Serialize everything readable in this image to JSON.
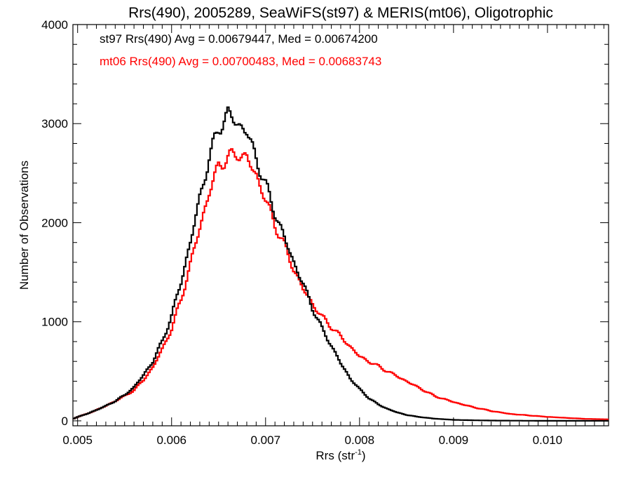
{
  "chart_data": {
    "type": "line",
    "title": "Rrs(490), 2005289, SeaWiFS(st97) & MERIS(mt06), Oligotrophic",
    "xlabel": "Rrs (str",
    "xlabel_sup": "-1",
    "xlabel_close": ")",
    "ylabel": "Number of Observations",
    "xlim": [
      0.00495,
      0.01065
    ],
    "ylim": [
      -50,
      4000
    ],
    "xticks": [
      0.005,
      0.006,
      0.007,
      0.008,
      0.009,
      0.01
    ],
    "xtick_labels": [
      "0.005",
      "0.006",
      "0.007",
      "0.008",
      "0.009",
      "0.010"
    ],
    "yticks": [
      0,
      1000,
      2000,
      3000,
      4000
    ],
    "ytick_labels": [
      "0",
      "1000",
      "2000",
      "3000",
      "4000"
    ],
    "grid": false,
    "legend": "top-left",
    "annotations": [
      {
        "text": "st97 Rrs(490) Avg = 0.00679447, Med = 0.00674200",
        "color": "#000000"
      },
      {
        "text": "mt06 Rrs(490) Avg = 0.00700483, Med = 0.00683743",
        "color": "#ff0000"
      }
    ],
    "series": [
      {
        "color": "#000000",
        "x": [
          0.00495,
          0.005,
          0.0051,
          0.0052,
          0.0053,
          0.0054,
          0.0055,
          0.0056,
          0.0057,
          0.0058,
          0.0059,
          0.006,
          0.0061,
          0.0062,
          0.0063,
          0.0064,
          0.0065,
          0.0066,
          0.0067,
          0.0068,
          0.0069,
          0.007,
          0.0071,
          0.0072,
          0.0073,
          0.0074,
          0.0075,
          0.0076,
          0.0077,
          0.0078,
          0.0079,
          0.008,
          0.0081,
          0.0082,
          0.0083,
          0.0084,
          0.0085,
          0.0086,
          0.0087,
          0.0088,
          0.0089,
          0.009,
          0.0092,
          0.0094,
          0.0096,
          0.0098,
          0.01,
          0.01065
        ],
        "values": [
          20,
          40,
          70,
          110,
          150,
          200,
          260,
          340,
          460,
          600,
          800,
          1060,
          1400,
          1800,
          2250,
          2650,
          2950,
          3100,
          3000,
          2920,
          2650,
          2380,
          2100,
          1850,
          1600,
          1380,
          1140,
          930,
          760,
          580,
          430,
          320,
          230,
          165,
          120,
          85,
          60,
          44,
          32,
          22,
          16,
          10,
          6,
          3,
          2,
          1,
          0,
          0
        ]
      },
      {
        "color": "#ff0000",
        "x": [
          0.00495,
          0.005,
          0.0051,
          0.0052,
          0.0053,
          0.0054,
          0.0055,
          0.0056,
          0.0057,
          0.0058,
          0.0059,
          0.006,
          0.0061,
          0.0062,
          0.0063,
          0.0064,
          0.0065,
          0.0066,
          0.0067,
          0.0068,
          0.0069,
          0.007,
          0.0071,
          0.0072,
          0.0073,
          0.0074,
          0.0075,
          0.0076,
          0.0077,
          0.0078,
          0.0079,
          0.008,
          0.0081,
          0.0082,
          0.0083,
          0.0084,
          0.0085,
          0.0086,
          0.0087,
          0.0088,
          0.0089,
          0.009,
          0.0092,
          0.0094,
          0.0096,
          0.0098,
          0.01,
          0.0102,
          0.0104,
          0.01065
        ],
        "values": [
          20,
          40,
          70,
          110,
          150,
          200,
          250,
          310,
          410,
          540,
          720,
          930,
          1220,
          1580,
          1950,
          2300,
          2580,
          2650,
          2700,
          2650,
          2480,
          2230,
          1980,
          1770,
          1530,
          1330,
          1180,
          1050,
          950,
          850,
          750,
          650,
          600,
          550,
          500,
          450,
          400,
          350,
          300,
          250,
          220,
          190,
          140,
          100,
          70,
          55,
          40,
          30,
          20,
          15
        ]
      }
    ]
  }
}
